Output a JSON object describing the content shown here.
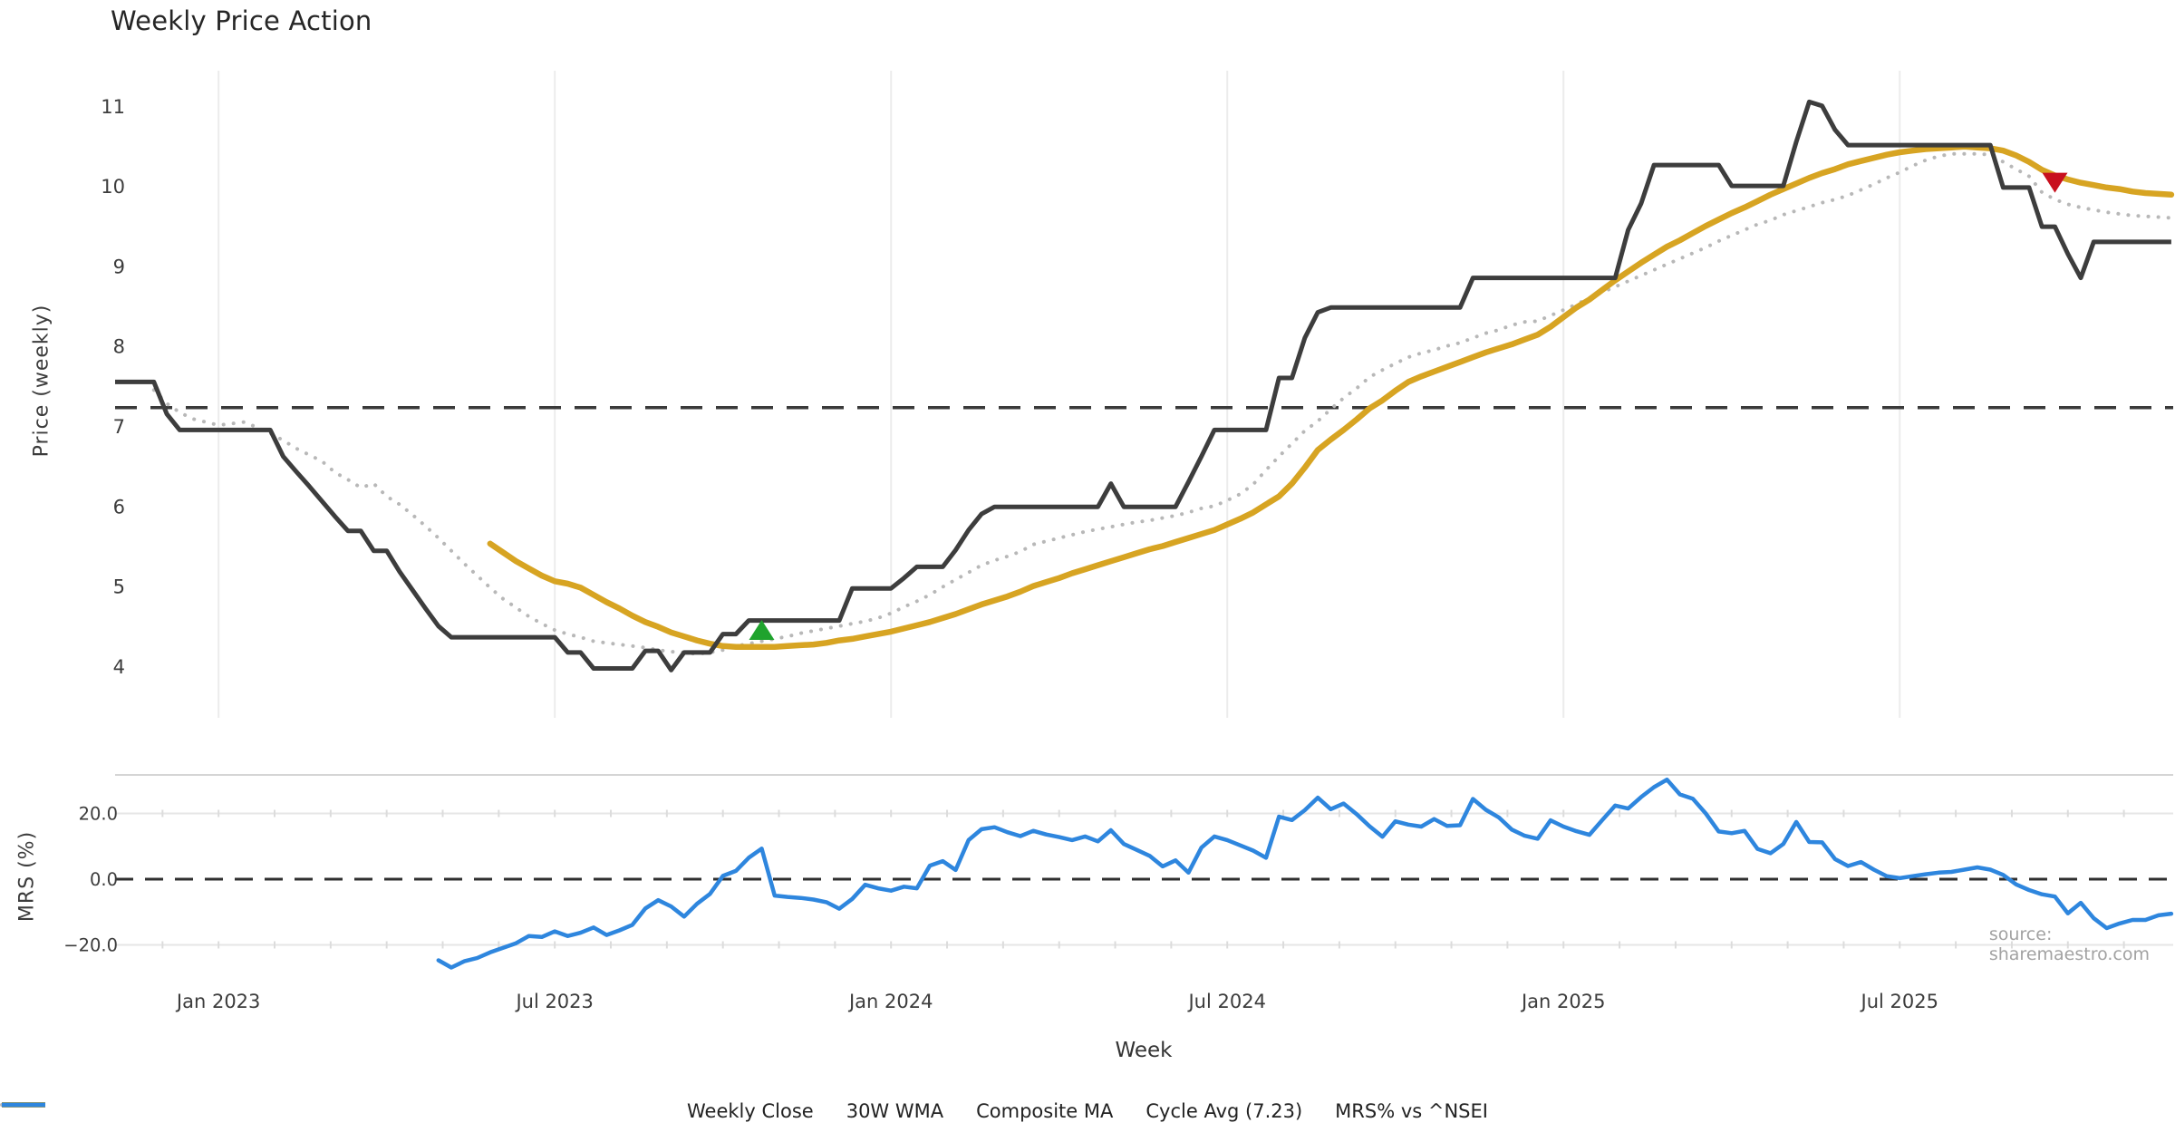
{
  "title": "Weekly Price Action",
  "xlabel": "Week",
  "source_text": "source: sharemaestro.com",
  "colors": {
    "close": "#3d3d3d",
    "wma": "#d7a422",
    "composite": "#b8b8b8",
    "cycle": "#3a3a3a",
    "mrs": "#2e86de",
    "buy_marker": "#1fa32d",
    "sell_marker": "#c8101e",
    "grid": "#ececec",
    "grid_minor": "#dcdcdc",
    "separator": "#d5d5d5",
    "tick_text": "#3c3c3c"
  },
  "legend": [
    {
      "label": "Weekly Close",
      "color": "#3d3d3d",
      "style": "solid",
      "width": 5
    },
    {
      "label": "30W WMA",
      "color": "#d7a422",
      "style": "solid",
      "width": 6
    },
    {
      "label": "Composite MA",
      "color": "#b8b8b8",
      "style": "dotted",
      "width": 4
    },
    {
      "label": "Cycle Avg (7.23)",
      "color": "#3a3a3a",
      "style": "dashed",
      "width": 4
    },
    {
      "label": "MRS% vs ^NSEI",
      "color": "#2e86de",
      "style": "solid",
      "width": 5
    }
  ],
  "chart_data": [
    {
      "type": "line",
      "panel": "price",
      "title": "Weekly Price Action",
      "xlabel": "Week",
      "ylabel": "Price (weekly)",
      "ylim": [
        3.4,
        11.65
      ],
      "yticks": [
        4,
        5,
        6,
        7,
        8,
        9,
        10,
        11
      ],
      "grid": "vertical-only",
      "cycle_avg": 7.23,
      "x_unit": "week-index (week 0 = mid-Nov 2022, 7 days per step)",
      "x_ticks": [
        {
          "i": 8,
          "label": "Jan 2023"
        },
        {
          "i": 34,
          "label": "Jul 2023"
        },
        {
          "i": 60,
          "label": "Jan 2024"
        },
        {
          "i": 86,
          "label": "Jul 2024"
        },
        {
          "i": 112,
          "label": "Jan 2025"
        },
        {
          "i": 138,
          "label": "Jul 2025"
        }
      ],
      "series": [
        {
          "name": "Weekly Close",
          "values": [
            7.55,
            7.55,
            7.55,
            7.55,
            7.15,
            6.95,
            6.95,
            6.95,
            6.95,
            6.95,
            6.95,
            6.95,
            6.95,
            6.62,
            6.43,
            6.25,
            6.06,
            5.87,
            5.69,
            5.69,
            5.44,
            5.44,
            5.18,
            4.95,
            4.72,
            4.5,
            4.36,
            4.36,
            4.36,
            4.36,
            4.36,
            4.36,
            4.36,
            4.36,
            4.36,
            4.17,
            4.17,
            3.97,
            3.97,
            3.97,
            3.97,
            4.19,
            4.19,
            3.95,
            4.17,
            4.17,
            4.17,
            4.4,
            4.4,
            4.57,
            4.57,
            4.57,
            4.57,
            4.57,
            4.57,
            4.57,
            4.57,
            4.97,
            4.97,
            4.97,
            4.97,
            5.1,
            5.24,
            5.24,
            5.24,
            5.45,
            5.7,
            5.9,
            5.99,
            5.99,
            5.99,
            5.99,
            5.99,
            5.99,
            5.99,
            5.99,
            5.99,
            6.28,
            5.99,
            5.99,
            5.99,
            5.99,
            5.99,
            6.3,
            6.62,
            6.95,
            6.95,
            6.95,
            6.95,
            6.95,
            7.6,
            7.6,
            8.1,
            8.42,
            8.48,
            8.48,
            8.48,
            8.48,
            8.48,
            8.48,
            8.48,
            8.48,
            8.48,
            8.48,
            8.48,
            8.85,
            8.85,
            8.85,
            8.85,
            8.85,
            8.85,
            8.85,
            8.85,
            8.85,
            8.85,
            8.85,
            8.85,
            9.45,
            9.78,
            10.26,
            10.26,
            10.26,
            10.26,
            10.26,
            10.26,
            10.0,
            10.0,
            10.0,
            10.0,
            10.0,
            10.55,
            11.05,
            11.0,
            10.7,
            10.51,
            10.51,
            10.51,
            10.51,
            10.51,
            10.51,
            10.51,
            10.51,
            10.51,
            10.51,
            10.51,
            10.51,
            9.98,
            9.98,
            9.98,
            9.49,
            9.49,
            9.15,
            8.85,
            9.3,
            9.3,
            9.3,
            9.3,
            9.3,
            9.3,
            9.3
          ]
        },
        {
          "name": "30W WMA",
          "values": [
            null,
            null,
            null,
            null,
            null,
            null,
            null,
            null,
            null,
            null,
            null,
            null,
            null,
            null,
            null,
            null,
            null,
            null,
            null,
            null,
            null,
            null,
            null,
            null,
            null,
            null,
            null,
            null,
            null,
            5.53,
            5.42,
            5.31,
            5.22,
            5.13,
            5.06,
            5.03,
            4.98,
            4.89,
            4.8,
            4.72,
            4.63,
            4.55,
            4.49,
            4.42,
            4.37,
            4.32,
            4.28,
            4.25,
            4.24,
            4.24,
            4.24,
            4.24,
            4.25,
            4.26,
            4.27,
            4.29,
            4.32,
            4.34,
            4.37,
            4.4,
            4.43,
            4.47,
            4.51,
            4.55,
            4.6,
            4.65,
            4.71,
            4.77,
            4.82,
            4.87,
            4.93,
            5.0,
            5.05,
            5.1,
            5.16,
            5.21,
            5.26,
            5.31,
            5.36,
            5.41,
            5.46,
            5.5,
            5.55,
            5.6,
            5.65,
            5.7,
            5.77,
            5.84,
            5.92,
            6.02,
            6.12,
            6.28,
            6.48,
            6.7,
            6.83,
            6.95,
            7.08,
            7.22,
            7.32,
            7.44,
            7.55,
            7.62,
            7.68,
            7.74,
            7.8,
            7.86,
            7.92,
            7.97,
            8.02,
            8.08,
            8.14,
            8.24,
            8.36,
            8.48,
            8.58,
            8.7,
            8.82,
            8.93,
            9.04,
            9.14,
            9.24,
            9.32,
            9.41,
            9.5,
            9.58,
            9.66,
            9.73,
            9.81,
            9.89,
            9.96,
            10.03,
            10.1,
            10.16,
            10.21,
            10.27,
            10.31,
            10.35,
            10.39,
            10.42,
            10.44,
            10.46,
            10.47,
            10.48,
            10.49,
            10.48,
            10.47,
            10.44,
            10.38,
            10.3,
            10.2,
            10.13,
            10.08,
            10.04,
            10.01,
            9.98,
            9.96,
            9.93,
            9.91,
            9.9,
            9.89
          ]
        },
        {
          "name": "Composite MA",
          "values": [
            null,
            null,
            null,
            7.45,
            7.28,
            7.17,
            7.09,
            7.05,
            7.01,
            7.03,
            7.05,
            6.98,
            6.91,
            6.82,
            6.72,
            6.64,
            6.56,
            6.42,
            6.33,
            6.23,
            6.28,
            6.12,
            6.02,
            5.89,
            5.75,
            5.6,
            5.44,
            5.28,
            5.13,
            4.98,
            4.84,
            4.73,
            4.62,
            4.53,
            4.45,
            4.4,
            4.36,
            4.31,
            4.29,
            4.27,
            4.25,
            4.23,
            4.2,
            4.18,
            4.17,
            4.15,
            4.17,
            4.2,
            4.25,
            4.28,
            4.31,
            4.34,
            4.37,
            4.41,
            4.44,
            4.47,
            4.5,
            4.53,
            4.56,
            4.6,
            4.66,
            4.74,
            4.81,
            4.89,
            4.99,
            5.08,
            5.17,
            5.26,
            5.32,
            5.37,
            5.43,
            5.52,
            5.56,
            5.6,
            5.64,
            5.68,
            5.71,
            5.74,
            5.77,
            5.8,
            5.82,
            5.85,
            5.88,
            5.92,
            5.97,
            6.0,
            6.07,
            6.15,
            6.27,
            6.45,
            6.62,
            6.78,
            6.94,
            7.06,
            7.21,
            7.35,
            7.47,
            7.61,
            7.7,
            7.78,
            7.86,
            7.91,
            7.95,
            8.0,
            8.04,
            8.1,
            8.16,
            8.2,
            8.26,
            8.3,
            8.31,
            8.38,
            8.45,
            8.52,
            8.6,
            8.67,
            8.74,
            8.81,
            8.88,
            8.95,
            9.02,
            9.09,
            9.16,
            9.23,
            9.31,
            9.38,
            9.45,
            9.52,
            9.57,
            9.64,
            9.69,
            9.74,
            9.79,
            9.83,
            9.88,
            9.95,
            10.02,
            10.1,
            10.17,
            10.25,
            10.32,
            10.37,
            10.4,
            10.4,
            10.4,
            10.39,
            10.3,
            10.21,
            10.12,
            9.92,
            9.83,
            9.77,
            9.73,
            9.7,
            9.67,
            9.65,
            9.63,
            9.62,
            9.61,
            9.6
          ]
        }
      ],
      "markers": [
        {
          "name": "buy-signal",
          "shape": "triangle-up",
          "week": 50,
          "price": 4.44,
          "color": "#1fa32d"
        },
        {
          "name": "sell-signal",
          "shape": "triangle-down",
          "week": 150,
          "price": 10.05,
          "color": "#c8101e"
        }
      ]
    },
    {
      "type": "line",
      "panel": "mrs",
      "ylabel": "MRS (%)",
      "ylim": [
        -32,
        32
      ],
      "yticks": [
        -20,
        0,
        20
      ],
      "ytick_labels": [
        "−20.0",
        "0.0",
        "20.0"
      ],
      "zero_line_dashed": true,
      "series": [
        {
          "name": "MRS% vs ^NSEI",
          "values": [
            null,
            null,
            null,
            null,
            null,
            null,
            null,
            null,
            null,
            null,
            null,
            null,
            null,
            null,
            null,
            null,
            null,
            null,
            null,
            null,
            null,
            null,
            null,
            null,
            null,
            -24.7,
            -26.9,
            -25.0,
            -24.0,
            -22.3,
            -20.9,
            -19.5,
            -17.3,
            -17.6,
            -15.9,
            -17.3,
            -16.3,
            -14.7,
            -17.0,
            -15.6,
            -13.9,
            -8.9,
            -6.4,
            -8.3,
            -11.4,
            -7.5,
            -4.5,
            1.0,
            2.5,
            6.5,
            9.3,
            -5.0,
            -5.4,
            -5.7,
            -6.2,
            -7.0,
            -9.0,
            -6.0,
            -1.7,
            -2.8,
            -3.5,
            -2.3,
            -2.8,
            4.1,
            5.5,
            2.8,
            11.9,
            15.2,
            15.8,
            14.3,
            13.1,
            14.7,
            13.6,
            12.8,
            11.9,
            13.0,
            11.5,
            14.9,
            10.7,
            8.9,
            7.1,
            3.9,
            5.7,
            2.0,
            9.6,
            13.0,
            11.9,
            10.3,
            8.7,
            6.5,
            19.0,
            18.0,
            21.0,
            24.8,
            21.3,
            23.0,
            19.8,
            16.1,
            12.9,
            17.6,
            16.6,
            16.0,
            18.3,
            16.2,
            16.4,
            24.4,
            21.1,
            18.8,
            15.1,
            13.2,
            12.3,
            17.9,
            16.0,
            14.6,
            13.5,
            18.0,
            22.4,
            21.5,
            25.0,
            28.0,
            30.3,
            25.8,
            24.5,
            20.0,
            14.5,
            14.0,
            14.7,
            9.2,
            7.9,
            10.7,
            17.4,
            11.3,
            11.2,
            6.1,
            4.0,
            5.2,
            2.9,
            0.9,
            0.3,
            0.9,
            1.5,
            2.0,
            2.2,
            2.9,
            3.6,
            2.9,
            1.3,
            -1.6,
            -3.3,
            -4.6,
            -5.3,
            -10.4,
            -7.2,
            -11.9,
            -14.9,
            -13.5,
            -12.4,
            -12.4,
            -11.0,
            -10.5
          ]
        }
      ]
    }
  ],
  "axis_labels": {
    "price": "Price (weekly)",
    "mrs": "MRS (%)"
  },
  "price_tick_labels": [
    "4",
    "5",
    "6",
    "7",
    "8",
    "9",
    "10",
    "11"
  ]
}
